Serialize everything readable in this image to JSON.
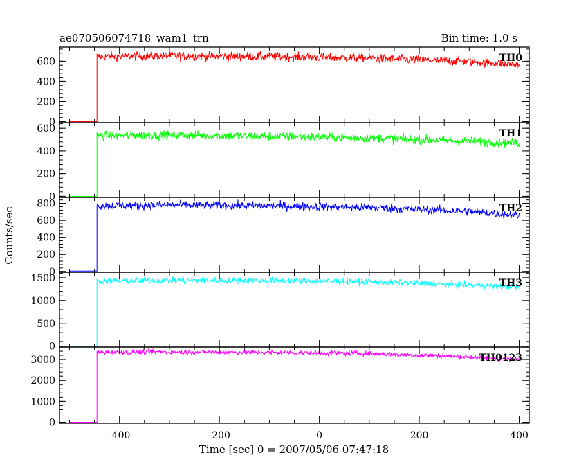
{
  "header": {
    "title": "ae070506074718_wam1_trn",
    "bin_time": "Bin time: 1.0 s"
  },
  "axes": {
    "xlabel": "Time [sec] 0 = 2007/05/06 07:47:18",
    "ylabel": "Counts/sec"
  },
  "chart_data": {
    "type": "line",
    "title": "ae070506074718_wam1_trn",
    "subtitle": "Bin time: 1.0 s",
    "xlabel": "Time [sec] 0 = 2007/05/06 07:47:18",
    "ylabel": "Counts/sec",
    "xlim": [
      -520,
      420
    ],
    "x_ticks": [
      -400,
      -200,
      0,
      200,
      400
    ],
    "bin_time_s": 1.0,
    "grid": false,
    "legend": "none",
    "shared_x": true,
    "panels": [
      {
        "name": "TH0",
        "color": "#ff0000",
        "ylim": [
          -10,
          740
        ],
        "y_ticks": [
          0,
          200,
          400,
          600
        ],
        "x_start": -500,
        "x_end": 400,
        "onset_x": -445,
        "pre_level": 0,
        "noise": 22,
        "series": {
          "x": [
            -445,
            -300,
            -100,
            100,
            300,
            400
          ],
          "y": [
            645,
            652,
            645,
            630,
            595,
            565
          ]
        }
      },
      {
        "name": "TH1",
        "color": "#00ff00",
        "ylim": [
          -10,
          650
        ],
        "y_ticks": [
          0,
          200,
          400,
          600
        ],
        "x_start": -500,
        "x_end": 400,
        "onset_x": -445,
        "pre_level": 0,
        "noise": 20,
        "series": {
          "x": [
            -445,
            -300,
            -100,
            100,
            300,
            400
          ],
          "y": [
            535,
            540,
            530,
            515,
            485,
            470
          ]
        }
      },
      {
        "name": "TH2",
        "color": "#0000ff",
        "ylim": [
          -10,
          870
        ],
        "y_ticks": [
          0,
          200,
          400,
          600,
          800
        ],
        "x_start": -500,
        "x_end": 400,
        "onset_x": -445,
        "pre_level": 5,
        "noise": 25,
        "series": {
          "x": [
            -445,
            -300,
            -100,
            100,
            300,
            400
          ],
          "y": [
            770,
            780,
            770,
            750,
            705,
            660
          ]
        }
      },
      {
        "name": "TH3",
        "color": "#00ffff",
        "ylim": [
          -20,
          1620
        ],
        "y_ticks": [
          0,
          500,
          1000,
          1500
        ],
        "x_start": -500,
        "x_end": 400,
        "onset_x": -445,
        "pre_level": 0,
        "noise": 35,
        "series": {
          "x": [
            -445,
            -300,
            -100,
            100,
            300,
            400
          ],
          "y": [
            1430,
            1440,
            1440,
            1410,
            1340,
            1290
          ]
        }
      },
      {
        "name": "TH0123",
        "color": "#ff00ff",
        "ylim": [
          -50,
          3600
        ],
        "y_ticks": [
          0,
          1000,
          2000,
          3000
        ],
        "x_start": -500,
        "x_end": 400,
        "onset_x": -445,
        "pre_level": 0,
        "noise": 60,
        "series": {
          "x": [
            -445,
            -300,
            -100,
            100,
            300,
            400
          ],
          "y": [
            3350,
            3360,
            3340,
            3290,
            3120,
            3000
          ]
        }
      }
    ]
  }
}
